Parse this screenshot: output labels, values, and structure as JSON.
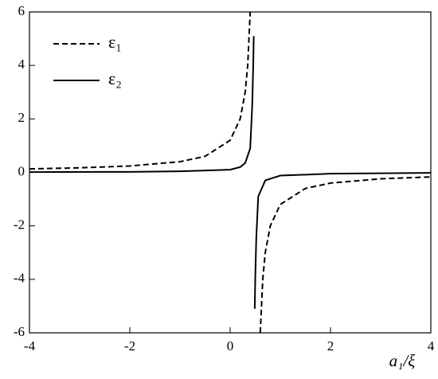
{
  "chart_data": {
    "type": "line",
    "x_label": "a₁/ξ",
    "xlim": [
      -4,
      4
    ],
    "xticks": [
      -4,
      -2,
      0,
      2,
      4
    ],
    "ylim": [
      -6,
      6
    ],
    "yticks": [
      -6,
      -4,
      -2,
      0,
      2,
      4,
      6
    ],
    "legend": "upper left",
    "series": [
      {
        "name": "ε₁",
        "color": "#000000",
        "dash": "dashed",
        "x": [
          -4,
          -3,
          -2,
          -1,
          -0.5,
          0,
          0.2,
          0.3,
          0.35,
          0.4,
          0.5,
          0.6,
          0.65,
          0.7,
          0.8,
          1,
          1.5,
          2,
          3,
          4
        ],
        "values": [
          0.13,
          0.17,
          0.24,
          0.4,
          0.6,
          1.2,
          2.0,
          3.0,
          4.0,
          6.0,
          null,
          -6.0,
          -4.0,
          -3.0,
          -2.0,
          -1.2,
          -0.6,
          -0.4,
          -0.24,
          -0.17
        ]
      },
      {
        "name": "ε₂",
        "color": "#000000",
        "dash": "solid",
        "x": [
          -4,
          -2,
          -1,
          0,
          0.2,
          0.3,
          0.4,
          0.44,
          0.46,
          0.47,
          0.48,
          0.49,
          0.5,
          0.52,
          0.56,
          0.7,
          1,
          2,
          4
        ],
        "values": [
          0.01,
          0.02,
          0.04,
          0.1,
          0.2,
          0.35,
          0.9,
          2.5,
          4.0,
          5.1,
          null,
          -5.1,
          -4.0,
          -2.5,
          -0.9,
          -0.3,
          -0.12,
          -0.05,
          -0.02
        ]
      }
    ]
  }
}
